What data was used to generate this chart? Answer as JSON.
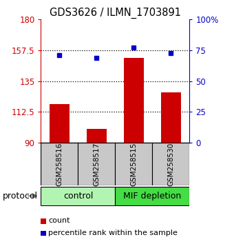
{
  "title": "GDS3626 / ILMN_1703891",
  "samples": [
    "GSM258516",
    "GSM258517",
    "GSM258515",
    "GSM258530"
  ],
  "bar_values": [
    118,
    100,
    152,
    127
  ],
  "dot_values": [
    71,
    69,
    77,
    73
  ],
  "bar_color": "#cc0000",
  "dot_color": "#0000cc",
  "ylim_left": [
    90,
    180
  ],
  "ylim_right": [
    0,
    100
  ],
  "yticks_left": [
    90,
    112.5,
    135,
    157.5,
    180
  ],
  "ytick_labels_left": [
    "90",
    "112.5",
    "135",
    "157.5",
    "180"
  ],
  "yticks_right": [
    0,
    25,
    50,
    75,
    100
  ],
  "ytick_labels_right": [
    "0",
    "25",
    "50",
    "75",
    "100%"
  ],
  "grid_yticks": [
    112.5,
    135,
    157.5
  ],
  "group_labels": [
    "control",
    "MIF depletion"
  ],
  "group_colors": [
    "#b2f5b2",
    "#44dd44"
  ],
  "protocol_label": "protocol",
  "legend_count_label": "count",
  "legend_pct_label": "percentile rank within the sample",
  "bar_width": 0.55,
  "sample_box_color": "#c8c8c8",
  "spine_color": "#000000"
}
